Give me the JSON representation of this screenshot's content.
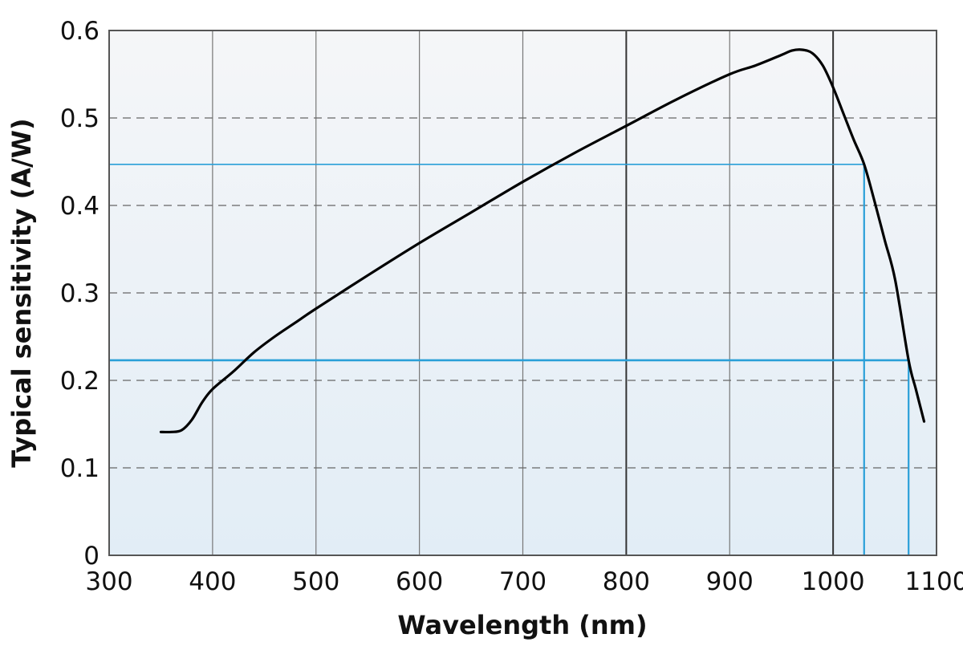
{
  "chart_data": {
    "type": "line",
    "title": "",
    "xlabel": "Wavelength (nm)",
    "ylabel": "Typical sensitivity (A/W)",
    "xlim": [
      300,
      1100
    ],
    "ylim": [
      0,
      0.6
    ],
    "x_ticks": [
      300,
      400,
      500,
      600,
      700,
      800,
      900,
      1000,
      1100
    ],
    "y_ticks": [
      0,
      0.1,
      0.2,
      0.3,
      0.4,
      0.5,
      0.6
    ],
    "x_tick_labels": [
      "300",
      "400",
      "500",
      "600",
      "700",
      "800",
      "900",
      "1000",
      "1100"
    ],
    "y_tick_labels": [
      "0",
      "0.1",
      "0.2",
      "0.3",
      "0.4",
      "0.5",
      "0.6"
    ],
    "grid": {
      "vertical": "solid",
      "horizontal": "dashed",
      "emphasized_vertical": [
        800,
        1000
      ]
    },
    "legend": null,
    "series": [
      {
        "name": "Typical sensitivity",
        "color": "#000000",
        "x": [
          350,
          360,
          370,
          380,
          390,
          400,
          420,
          440,
          460,
          480,
          500,
          550,
          600,
          650,
          700,
          750,
          800,
          850,
          900,
          925,
          950,
          960,
          970,
          980,
          990,
          1000,
          1010,
          1020,
          1030,
          1040,
          1050,
          1060,
          1073,
          1080,
          1088
        ],
        "y": [
          0.141,
          0.141,
          0.143,
          0.155,
          0.175,
          0.19,
          0.21,
          0.232,
          0.25,
          0.266,
          0.282,
          0.32,
          0.357,
          0.392,
          0.427,
          0.46,
          0.491,
          0.522,
          0.55,
          0.56,
          0.572,
          0.577,
          0.578,
          0.574,
          0.56,
          0.535,
          0.505,
          0.475,
          0.447,
          0.405,
          0.36,
          0.315,
          0.223,
          0.19,
          0.153
        ]
      }
    ],
    "reference_lines": [
      {
        "name": "reference-1",
        "color": "#2a9fd8",
        "x": 1030,
        "y": 0.447
      },
      {
        "name": "reference-2",
        "color": "#2a9fd8",
        "x": 1073,
        "y": 0.223
      }
    ],
    "background_gradient": [
      "#f5f6f8",
      "#e2edf6"
    ]
  }
}
